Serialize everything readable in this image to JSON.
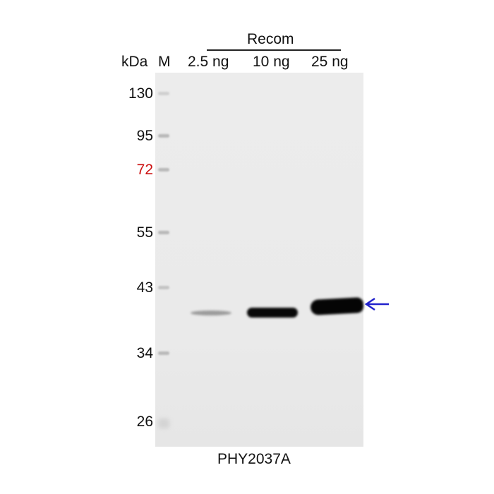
{
  "header": {
    "group_label": "Recom",
    "kda_label": "kDa",
    "marker_label": "M",
    "lanes": [
      "2.5 ng",
      "10 ng",
      "25 ng"
    ]
  },
  "markers": [
    {
      "label": "130",
      "color": "#111111"
    },
    {
      "label": "95",
      "color": "#111111"
    },
    {
      "label": "72",
      "color": "#cc1111"
    },
    {
      "label": "55",
      "color": "#111111"
    },
    {
      "label": "43",
      "color": "#111111"
    },
    {
      "label": "34",
      "color": "#111111"
    },
    {
      "label": "26",
      "color": "#111111"
    }
  ],
  "bands": [
    {
      "lane": "2.5 ng",
      "intensity": 0.3
    },
    {
      "lane": "10 ng",
      "intensity": 0.95
    },
    {
      "lane": "25 ng",
      "intensity": 1.0
    }
  ],
  "arrow": {
    "icon": "left-arrow-icon",
    "color": "#2222cc"
  },
  "footer": {
    "caption": "PHY2037A"
  }
}
